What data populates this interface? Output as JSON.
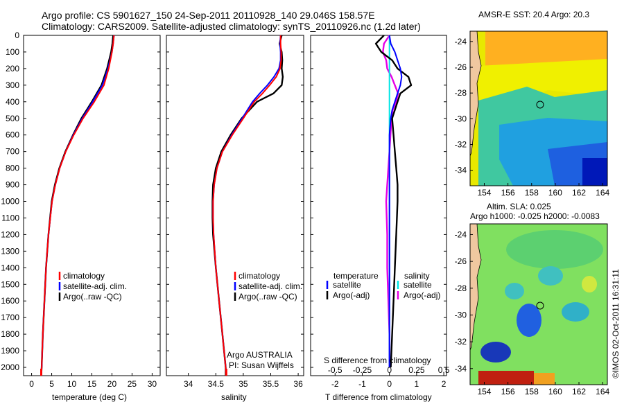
{
  "header": {
    "line1": "Argo profile: CS 5901627_150 24-Sep-2011 20110928_140 29.046S 158.57E",
    "line2": "Climatology: CARS2009. Satellite-adjusted climatology: synTS_20110926.nc (1.2d later)"
  },
  "colors": {
    "climatology": "#ff0000",
    "satellite": "#0000ff",
    "argo": "#000000",
    "salinity_satellite": "#00e5e5",
    "salinity_argo": "#e600e6"
  },
  "depth_ticks": [
    "0",
    "100",
    "200",
    "300",
    "400",
    "500",
    "600",
    "700",
    "800",
    "900",
    "1000",
    "1100",
    "1200",
    "1300",
    "1400",
    "1500",
    "1600",
    "1700",
    "1800",
    "1900",
    "2000"
  ],
  "chart_data": [
    {
      "type": "line",
      "name": "temperature-profile",
      "xlabel": "temperature (deg C)",
      "ylabel": "depth",
      "xlim": [
        -2,
        32
      ],
      "ylim": [
        2050,
        0
      ],
      "xticks": [
        "0",
        "5",
        "10",
        "15",
        "20",
        "25",
        "30"
      ],
      "legend": [
        "climatology",
        "satellite-adj. clim.",
        "Argo(..raw -QC)"
      ],
      "depth": [
        0,
        50,
        100,
        200,
        300,
        400,
        500,
        600,
        700,
        800,
        900,
        1000,
        1200,
        1400,
        1600,
        1800,
        2000,
        2050
      ],
      "series": [
        {
          "name": "climatology",
          "values": [
            20.5,
            20.3,
            20.0,
            19.2,
            18.0,
            15.6,
            12.8,
            10.5,
            8.5,
            7.0,
            5.9,
            5.1,
            4.2,
            3.6,
            3.2,
            2.8,
            2.5,
            2.4
          ]
        },
        {
          "name": "satellite-adj. clim.",
          "values": [
            20.5,
            20.3,
            20.0,
            19.0,
            17.6,
            15.2,
            12.6,
            10.4,
            8.5,
            7.0,
            5.9,
            5.1,
            4.2,
            3.6,
            3.2,
            2.8,
            2.5,
            2.4
          ]
        },
        {
          "name": "Argo(..raw -QC)",
          "values": [
            20.3,
            20.1,
            19.8,
            18.8,
            17.4,
            15.0,
            12.4,
            10.3,
            8.4,
            6.9,
            5.8,
            5.0,
            4.2,
            3.6,
            3.2,
            2.8,
            2.5,
            2.4
          ]
        }
      ]
    },
    {
      "type": "line",
      "name": "salinity-profile",
      "xlabel": "salinity",
      "ylabel": "depth",
      "xlim": [
        33.6,
        36.1
      ],
      "ylim": [
        2050,
        0
      ],
      "xticks": [
        "34",
        "34.5",
        "35",
        "35.5",
        "36"
      ],
      "legend": [
        "climatology",
        "satellite-adj. clim.",
        "Argo(..raw -QC)"
      ],
      "annotation": [
        "Argo AUSTRALIA",
        "PI: Susan Wijffels"
      ],
      "depth": [
        0,
        50,
        100,
        150,
        200,
        250,
        300,
        350,
        400,
        500,
        600,
        700,
        800,
        900,
        1000,
        1100,
        1200,
        1400,
        1600,
        1800,
        2000,
        2050
      ],
      "series": [
        {
          "name": "climatology",
          "values": [
            35.68,
            35.68,
            35.69,
            35.69,
            35.67,
            35.6,
            35.48,
            35.35,
            35.2,
            35.0,
            34.8,
            34.62,
            34.52,
            34.47,
            34.45,
            34.45,
            34.46,
            34.5,
            34.56,
            34.62,
            34.68,
            34.69
          ]
        },
        {
          "name": "satellite-adj. clim.",
          "values": [
            35.68,
            35.67,
            35.68,
            35.68,
            35.65,
            35.56,
            35.44,
            35.3,
            35.17,
            34.98,
            34.79,
            34.62,
            34.52,
            34.47,
            34.45,
            34.45,
            34.46,
            34.5,
            34.56,
            34.62,
            34.68,
            34.69
          ]
        },
        {
          "name": "Argo(..raw -QC)",
          "values": [
            35.7,
            35.66,
            35.7,
            35.71,
            35.7,
            35.72,
            35.7,
            35.55,
            35.25,
            34.97,
            34.77,
            34.6,
            34.5,
            34.45,
            34.44,
            34.44,
            34.45,
            34.5,
            34.56,
            34.62,
            34.68,
            34.68
          ]
        }
      ]
    },
    {
      "type": "line",
      "name": "difference-profile",
      "xlabel": "T difference from climatology",
      "ylabel": "depth",
      "xlim": [
        -2.9,
        2.1
      ],
      "ylim": [
        2050,
        0
      ],
      "xticks": [
        "-2",
        "-1",
        "0",
        "1",
        "2"
      ],
      "top_xlabel": "S difference from climatology",
      "top_xticks": [
        "-0.5",
        "-0.25",
        "0",
        "0.25",
        "0.5"
      ],
      "legend_temperature_title": "temperature",
      "legend_salinity_title": "salinity",
      "legend_temperature": [
        "satellite",
        "Argo(-adj)"
      ],
      "legend_salinity": [
        "satellite",
        "Argo(-adj)"
      ],
      "depth": [
        0,
        50,
        100,
        150,
        200,
        250,
        300,
        350,
        400,
        450,
        500,
        600,
        700,
        800,
        900,
        1000,
        1200,
        1400,
        1600,
        1800,
        2000
      ],
      "series": [
        {
          "name": "temperature satellite",
          "values": [
            0,
            0.05,
            0.2,
            0.3,
            0.4,
            0.45,
            0.4,
            0.3,
            0.2,
            0.1,
            0.05,
            0,
            0,
            0,
            0,
            0,
            0,
            0,
            0,
            0,
            0
          ]
        },
        {
          "name": "temperature Argo(-adj)",
          "values": [
            -0.2,
            -0.5,
            -0.3,
            0.1,
            0.3,
            0.7,
            0.8,
            0.4,
            0.3,
            0.2,
            0.1,
            0.15,
            0.2,
            0.25,
            0.3,
            0.3,
            0.25,
            0.2,
            0.15,
            0.1,
            0.05
          ]
        },
        {
          "name": "salinity satellite",
          "values": [
            0,
            0,
            0,
            0,
            0,
            0,
            0,
            0,
            0,
            0,
            0,
            0,
            0,
            0,
            0,
            0,
            0,
            0,
            0,
            0,
            0
          ]
        },
        {
          "name": "salinity Argo(-adj)",
          "values": [
            0,
            -0.05,
            -0.06,
            -0.03,
            -0.02,
            0.02,
            0.05,
            0.08,
            0.06,
            0.03,
            0.02,
            0.01,
            0,
            -0.01,
            -0.02,
            -0.03,
            -0.02,
            -0.02,
            -0.01,
            0,
            0
          ]
        }
      ]
    },
    {
      "type": "heatmap",
      "name": "sst-map",
      "title": "AMSR-E SST: 20.4  Argo: 20.3",
      "x_ticks": [
        "154",
        "156",
        "158",
        "160",
        "162",
        "164"
      ],
      "y_ticks": [
        "-24",
        "-26",
        "-28",
        "-30",
        "-32",
        "-34"
      ],
      "xlim": [
        152.8,
        164.4
      ],
      "ylim": [
        -35.2,
        -23.2
      ],
      "marker": {
        "lon": 158.57,
        "lat": -29.05
      }
    },
    {
      "type": "heatmap",
      "name": "sla-map",
      "title_line1": "Altim. SLA: 0.025",
      "title_line2": "Argo h1000: -0.025 h2000: -0.0083",
      "x_ticks": [
        "154",
        "156",
        "158",
        "160",
        "162",
        "164"
      ],
      "y_ticks": [
        "-24",
        "-26",
        "-28",
        "-30",
        "-32",
        "-34"
      ],
      "xlim": [
        152.8,
        164.4
      ],
      "ylim": [
        -35.2,
        -23.2
      ],
      "marker": {
        "lon": 158.57,
        "lat": -29.05
      }
    }
  ],
  "footer": "©IMOS 02-Oct-2011 16:31:11"
}
